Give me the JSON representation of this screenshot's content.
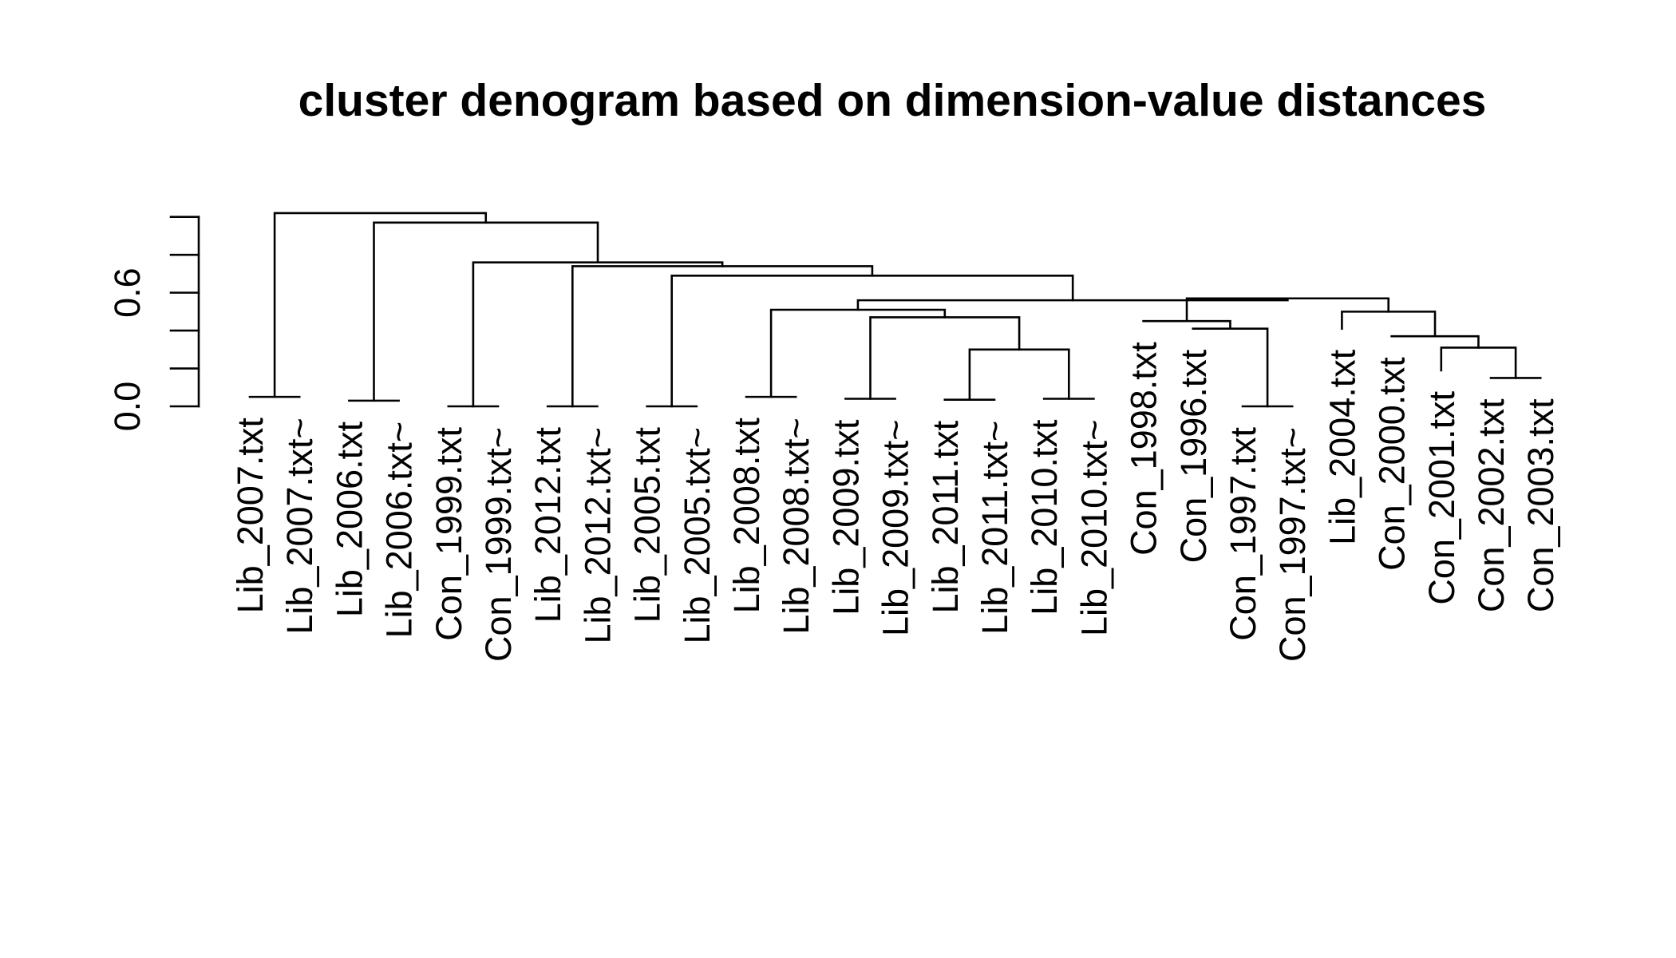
{
  "chart_data": {
    "type": "dendrogram",
    "title": "cluster denogram based on dimension-value distances",
    "xlabel": "",
    "ylabel": "",
    "ylim": [
      0,
      1.1
    ],
    "y_ticks": [
      0.0,
      0.2,
      0.4,
      0.6,
      0.8,
      1.0
    ],
    "y_tick_labels": [
      "0.0",
      "",
      "",
      "0.6",
      "",
      ""
    ],
    "grid": false,
    "leaves": [
      {
        "label": "Lib_2007.txt",
        "height": 0.05
      },
      {
        "label": "Lib_2007.txt~",
        "height": 0.05
      },
      {
        "label": "Lib_2006.txt",
        "height": 0.03
      },
      {
        "label": "Lib_2006.txt~",
        "height": 0.03
      },
      {
        "label": "Con_1999.txt",
        "height": 0.0
      },
      {
        "label": "Con_1999.txt~",
        "height": 0.0
      },
      {
        "label": "Lib_2012.txt",
        "height": 0.0
      },
      {
        "label": "Lib_2012.txt~",
        "height": 0.0
      },
      {
        "label": "Lib_2005.txt",
        "height": 0.0
      },
      {
        "label": "Lib_2005.txt~",
        "height": 0.0
      },
      {
        "label": "Lib_2008.txt",
        "height": 0.05
      },
      {
        "label": "Lib_2008.txt~",
        "height": 0.05
      },
      {
        "label": "Lib_2009.txt",
        "height": 0.04
      },
      {
        "label": "Lib_2009.txt~",
        "height": 0.04
      },
      {
        "label": "Lib_2011.txt",
        "height": 0.035
      },
      {
        "label": "Lib_2011.txt~",
        "height": 0.035
      },
      {
        "label": "Lib_2010.txt",
        "height": 0.04
      },
      {
        "label": "Lib_2010.txt~",
        "height": 0.04
      },
      {
        "label": "Con_1998.txt",
        "height": 0.45
      },
      {
        "label": "Con_1996.txt",
        "height": 0.41
      },
      {
        "label": "Con_1997.txt",
        "height": 0.0
      },
      {
        "label": "Con_1997.txt~",
        "height": 0.0
      },
      {
        "label": "Lib_2004.txt",
        "height": 0.41
      },
      {
        "label": "Con_2000.txt",
        "height": 0.37
      },
      {
        "label": "Con_2001.txt",
        "height": 0.19
      },
      {
        "label": "Con_2002.txt",
        "height": 0.15
      },
      {
        "label": "Con_2003.txt",
        "height": 0.15
      }
    ],
    "merges": [
      {
        "left": 0,
        "right": 1,
        "height": 0.05
      },
      {
        "left": 2,
        "right": 3,
        "height": 0.03
      },
      {
        "left": 4,
        "right": 5,
        "height": 0.0
      },
      {
        "left": 6,
        "right": 7,
        "height": 0.0
      },
      {
        "left": 8,
        "right": 9,
        "height": 0.0
      },
      {
        "left": 10,
        "right": 11,
        "height": 0.05
      },
      {
        "left": 12,
        "right": 13,
        "height": 0.04
      },
      {
        "left": 14,
        "right": 15,
        "height": 0.035
      },
      {
        "left": 16,
        "right": 17,
        "height": 0.04
      },
      {
        "left": 20,
        "right": 21,
        "height": 0.0
      },
      {
        "left": 25,
        "right": 26,
        "height": 0.15
      },
      {
        "left": "m8",
        "right": "m9",
        "height": 0.3
      },
      {
        "left": "m7",
        "right": "m12",
        "height": 0.47
      },
      {
        "left": "m6",
        "right": "m13",
        "height": 0.51
      },
      {
        "left": 19,
        "right": "m10",
        "height": 0.41
      },
      {
        "left": 18,
        "right": "m15",
        "height": 0.45
      },
      {
        "left": 24,
        "right": "m11",
        "height": 0.31
      },
      {
        "left": 23,
        "right": "m17",
        "height": 0.37
      },
      {
        "left": 22,
        "right": "m18",
        "height": 0.5
      },
      {
        "left": "m16",
        "right": "m19",
        "height": 0.57
      },
      {
        "left": "m14",
        "right": "m20",
        "height": 0.56
      },
      {
        "left": "m5",
        "right": "m21",
        "height": 0.69
      },
      {
        "left": "m4",
        "right": "m22",
        "height": 0.74
      },
      {
        "left": "m3",
        "right": "m23",
        "height": 0.76
      },
      {
        "left": "m2",
        "right": "m24",
        "height": 0.97
      },
      {
        "left": "m1",
        "right": "m25",
        "height": 1.02
      }
    ]
  }
}
